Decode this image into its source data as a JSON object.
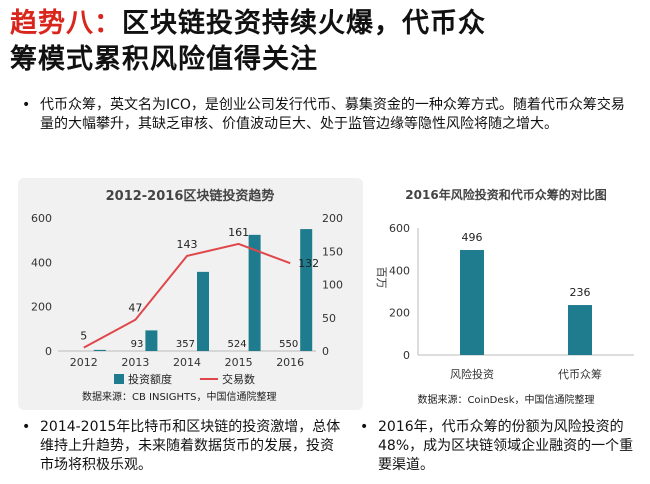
{
  "slide": {
    "title_accent": "趋势八：",
    "title_line1": "区块链投资持续火爆，代币众",
    "title_line2": "筹模式累积风险值得关注",
    "bullet_intro": "代币众筹，英文名为ICO，是创业公司发行代币、募集资金的一种众筹方式。随着代币众筹交易量的大幅攀升，其缺乏审核、价值波动巨大、处于监管边缘等隐性风险将随之增大。",
    "bullet_left": "2014-2015年比特币和区块链的投资激增，总体维持上升趋势，未来随着数据货币的发展，投资市场将积极乐观。",
    "bullet_right": "2016年，代币众筹的份额为风险投资的48%，成为区块链领域企业融资的一个重要渠道。",
    "bullet_marker": "•"
  },
  "colors": {
    "title_accent": "#d9261c",
    "bar": "#1f7b8e",
    "line": "#e0474a",
    "axis_text": "#555555"
  },
  "chart_data": [
    {
      "type": "bar+line",
      "title": "2012-2016区块链投资趋势",
      "categories": [
        "2012",
        "2013",
        "2014",
        "2015",
        "2016"
      ],
      "series": [
        {
          "name": "投资额度",
          "type": "bar",
          "axis": "left",
          "values": [
            5,
            93,
            357,
            524,
            550
          ]
        },
        {
          "name": "交易数",
          "type": "line",
          "axis": "right",
          "values": [
            5,
            47,
            143,
            161,
            132
          ]
        }
      ],
      "bar_value_labels": [
        "",
        "93",
        "357",
        "524",
        "550"
      ],
      "line_value_labels": [
        "5",
        "47",
        "143",
        "161",
        "132"
      ],
      "ylim_left": [
        0,
        600
      ],
      "yticks_left": [
        "0",
        "200",
        "400",
        "600"
      ],
      "ylim_right": [
        0,
        200
      ],
      "yticks_right": [
        "0",
        "50",
        "100",
        "150",
        "200"
      ],
      "legend_position": "bottom",
      "source": "数据来源：CB INSIGHTS，中国信通院整理"
    },
    {
      "type": "bar",
      "title": "2016年风险投资和代币众筹的对比图",
      "ylabel": "百万",
      "categories": [
        "风险投资",
        "代币众筹"
      ],
      "values": [
        496,
        236
      ],
      "value_labels": [
        "496",
        "236"
      ],
      "ylim": [
        0,
        600
      ],
      "yticks": [
        "0",
        "200",
        "400",
        "600"
      ],
      "source": "数据来源：CoinDesk，中国信通院整理"
    }
  ]
}
